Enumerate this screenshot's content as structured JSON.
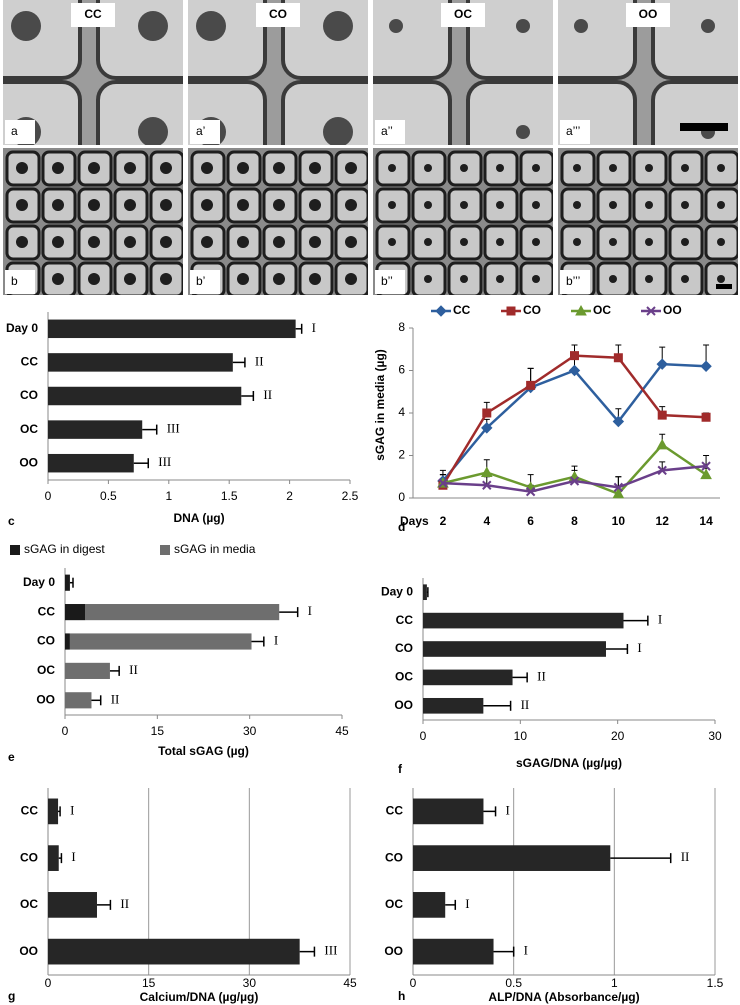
{
  "image_panels": {
    "conditions": [
      "CC",
      "CO",
      "OC",
      "OO"
    ],
    "row_a_labels": [
      "a",
      "a’",
      "a’’",
      "a’’’"
    ],
    "row_b_labels": [
      "b",
      "b’",
      "b’’",
      "b’’’"
    ]
  },
  "chart_data": [
    {
      "type": "bar",
      "panel_label": "c",
      "xlabel": "DNA (µg)",
      "categories": [
        "Day 0",
        "CC",
        "CO",
        "OC",
        "OO"
      ],
      "values": [
        2.05,
        1.53,
        1.6,
        0.78,
        0.71
      ],
      "errors": [
        0.05,
        0.1,
        0.1,
        0.12,
        0.12
      ],
      "significance": [
        "I",
        "II",
        "II",
        "III",
        "III"
      ],
      "color": "#262626",
      "xlim": [
        0,
        2.5
      ],
      "xticks": [
        0,
        0.5,
        1,
        1.5,
        2,
        2.5
      ],
      "grid": false
    },
    {
      "type": "line",
      "panel_label": "d",
      "xlabel": "Days",
      "ylabel": "sGAG in media (µg)",
      "categories": [
        "2",
        "4",
        "6",
        "8",
        "10",
        "12",
        "14"
      ],
      "series": [
        {
          "name": "CC",
          "color": "#2e5f9e",
          "marker": "diamond",
          "values": [
            0.8,
            3.3,
            5.2,
            6.0,
            3.6,
            6.3,
            6.2
          ],
          "errors": [
            0.5,
            0.4,
            0.9,
            0.6,
            0.6,
            0.8,
            1.0
          ]
        },
        {
          "name": "CO",
          "color": "#a02b2b",
          "marker": "square",
          "values": [
            0.6,
            4.0,
            5.3,
            6.7,
            6.6,
            3.9,
            3.8
          ],
          "errors": [
            0.5,
            0.5,
            0.8,
            0.5,
            0.6,
            0.4,
            0.2
          ]
        },
        {
          "name": "OC",
          "color": "#6b9a2f",
          "marker": "triangle",
          "values": [
            0.7,
            1.2,
            0.5,
            1.0,
            0.2,
            2.5,
            1.1
          ],
          "errors": [
            0.4,
            0.6,
            0.6,
            0.5,
            0.8,
            0.5,
            0.3
          ]
        },
        {
          "name": "OO",
          "color": "#6a3f8a",
          "marker": "x",
          "values": [
            0.7,
            0.6,
            0.3,
            0.8,
            0.5,
            1.3,
            1.5
          ],
          "errors": [
            0.4,
            0.4,
            0.3,
            0.5,
            0.5,
            0.4,
            0.5
          ]
        }
      ],
      "ylim": [
        0,
        8
      ],
      "yticks": [
        0,
        2,
        4,
        6,
        8
      ],
      "grid": false
    },
    {
      "type": "stacked_bar",
      "panel_label": "e",
      "xlabel": "Total sGAG (µg)",
      "categories": [
        "Day 0",
        "CC",
        "CO",
        "OC",
        "OO"
      ],
      "series": [
        {
          "name": "sGAG in digest",
          "color": "#1a1a1a",
          "values": [
            0.8,
            3.3,
            0.8,
            0,
            0
          ]
        },
        {
          "name": "sGAG in media",
          "color": "#6e6e6e",
          "values": [
            0,
            31.5,
            29.5,
            7.3,
            4.3
          ]
        }
      ],
      "errors": [
        0.5,
        3.0,
        2.0,
        1.5,
        1.5
      ],
      "significance": [
        null,
        "I",
        "I",
        "II",
        "II"
      ],
      "xlim": [
        0,
        45
      ],
      "xticks": [
        0,
        15,
        30,
        45
      ],
      "grid": false
    },
    {
      "type": "bar",
      "panel_label": "f",
      "xlabel": "sGAG/DNA (µg/µg)",
      "categories": [
        "Day 0",
        "CC",
        "CO",
        "OC",
        "OO"
      ],
      "values": [
        0.4,
        20.6,
        18.8,
        9.2,
        6.2
      ],
      "errors": [
        0.1,
        2.5,
        2.2,
        1.5,
        2.8
      ],
      "significance": [
        null,
        "I",
        "I",
        "II",
        "II"
      ],
      "color": "#262626",
      "xlim": [
        0,
        30
      ],
      "xticks": [
        0,
        10,
        20,
        30
      ],
      "grid": false
    },
    {
      "type": "bar",
      "panel_label": "g",
      "xlabel": "Calcium/DNA (µg/µg)",
      "categories": [
        "CC",
        "CO",
        "OC",
        "OO"
      ],
      "values": [
        1.5,
        1.6,
        7.3,
        37.5
      ],
      "errors": [
        0.3,
        0.4,
        2.0,
        2.2
      ],
      "significance": [
        "I",
        "I",
        "II",
        "III"
      ],
      "color": "#262626",
      "xlim": [
        0,
        45
      ],
      "xticks": [
        0,
        15,
        30,
        45
      ],
      "grid": true
    },
    {
      "type": "bar",
      "panel_label": "h",
      "xlabel": "ALP/DNA (Absorbance/µg)",
      "categories": [
        "CC",
        "CO",
        "OC",
        "OO"
      ],
      "values": [
        0.35,
        0.98,
        0.16,
        0.4
      ],
      "errors": [
        0.06,
        0.3,
        0.05,
        0.1
      ],
      "significance": [
        "I",
        "II",
        "I",
        "I"
      ],
      "color": "#262626",
      "xlim": [
        0,
        1.5
      ],
      "xticks": [
        0,
        0.5,
        1,
        1.5
      ],
      "grid": true
    }
  ]
}
